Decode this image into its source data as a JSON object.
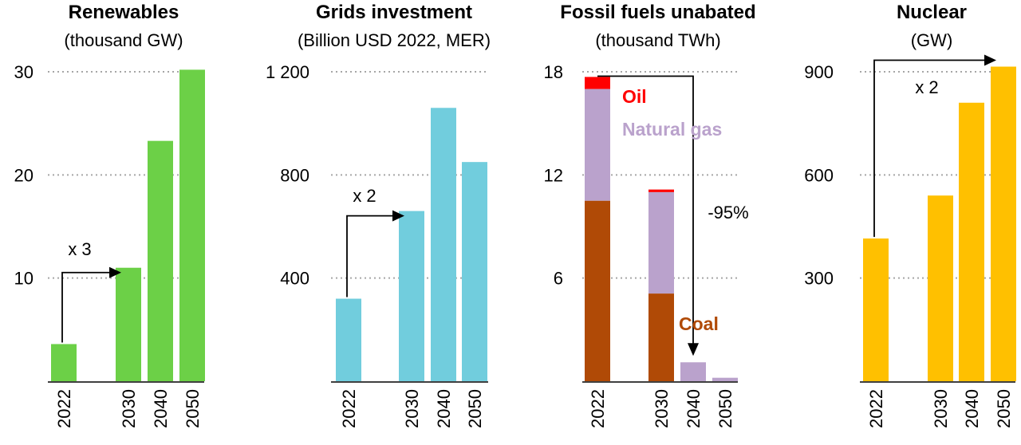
{
  "chart_data": [
    {
      "type": "bar",
      "title": "Renewables",
      "subtitle": "(thousand GW)",
      "categories": [
        "2022",
        "2030",
        "2040",
        "2050"
      ],
      "values": [
        3.6,
        11,
        23.3,
        30.2
      ],
      "ylim": [
        0,
        30
      ],
      "yticks": [
        {
          "value": 10,
          "label": "10"
        },
        {
          "value": 20,
          "label": "20"
        },
        {
          "value": 30,
          "label": "30"
        }
      ],
      "color": "#6cd047",
      "grid": true,
      "annotation": {
        "label": "x 3",
        "from": "2022",
        "to": "2030"
      }
    },
    {
      "type": "bar",
      "title": "Grids investment",
      "subtitle": "(Billion USD 2022, MER)",
      "categories": [
        "2022",
        "2030",
        "2040",
        "2050"
      ],
      "values": [
        320,
        660,
        1060,
        850
      ],
      "ylim": [
        0,
        1200
      ],
      "yticks": [
        {
          "value": 400,
          "label": "400"
        },
        {
          "value": 800,
          "label": "800"
        },
        {
          "value": 1200,
          "label": "1 200"
        }
      ],
      "color": "#71cddd",
      "grid": true,
      "annotation": {
        "label": "x 2",
        "from": "2022",
        "to": "2030"
      }
    },
    {
      "type": "bar",
      "stacked": true,
      "title": "Fossil fuels unabated",
      "subtitle": "(thousand TWh)",
      "categories": [
        "2022",
        "2030",
        "2040",
        "2050"
      ],
      "series": [
        {
          "name": "Coal",
          "color": "#b04a06",
          "values": [
            10.5,
            5.1,
            0,
            0
          ]
        },
        {
          "name": "Natural gas",
          "color": "#baa2cc",
          "values": [
            6.5,
            5.9,
            1.1,
            0.2
          ]
        },
        {
          "name": "Oil",
          "color": "#ff0000",
          "values": [
            0.7,
            0.15,
            0,
            0
          ]
        }
      ],
      "ylim": [
        0,
        18
      ],
      "yticks": [
        {
          "value": 6,
          "label": "6"
        },
        {
          "value": 12,
          "label": "12"
        },
        {
          "value": 18,
          "label": "18"
        }
      ],
      "grid": true,
      "annotation": {
        "label": "-95%",
        "from": "2022",
        "to": "2040"
      },
      "series_labels": [
        {
          "text": "Oil",
          "color": "#ff0000"
        },
        {
          "text": "Natural gas",
          "color": "#baa2cc"
        },
        {
          "text": "Coal",
          "color": "#b04a06"
        }
      ]
    },
    {
      "type": "bar",
      "title": "Nuclear",
      "subtitle": "(GW)",
      "categories": [
        "2022",
        "2030",
        "2040",
        "2050"
      ],
      "values": [
        415,
        540,
        810,
        915
      ],
      "ylim": [
        0,
        900
      ],
      "yticks": [
        {
          "value": 300,
          "label": "300"
        },
        {
          "value": 600,
          "label": "600"
        },
        {
          "value": 900,
          "label": "900"
        }
      ],
      "color": "#ffc000",
      "grid": true,
      "annotation": {
        "label": "x 2",
        "from": "2022",
        "to": "2050"
      }
    }
  ]
}
